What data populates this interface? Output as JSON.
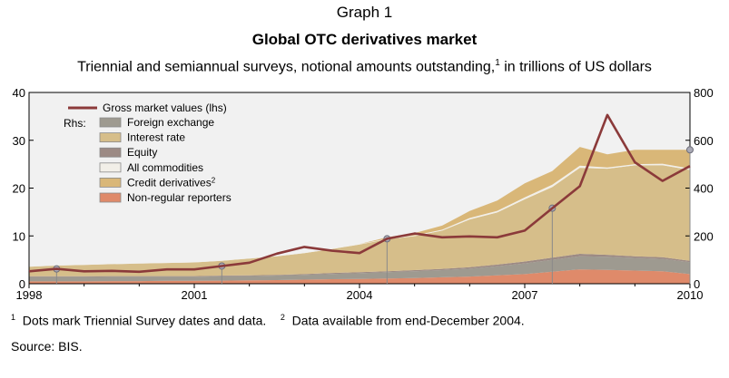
{
  "header": {
    "graph_label": "Graph 1",
    "title": "Global OTC derivatives market",
    "subtitle_pre": "Triennial and semiannual surveys, notional amounts outstanding,",
    "subtitle_sup": "1",
    "subtitle_post": " in trillions of US dollars"
  },
  "footnotes": {
    "n1_mark": "1",
    "n1_text": "Dots mark Triennial Survey dates and data.",
    "n2_mark": "2",
    "n2_text": "Data available from end-December 2004.",
    "source": "Source: BIS."
  },
  "colors": {
    "gross": "#8b3a3a",
    "fx": "#9e9a90",
    "ir": "#d6be8a",
    "equity": "#9c8a84",
    "commodities": "#f2efe8",
    "cds": "#d9b778",
    "nonreg": "#df8a6a",
    "plot_bg": "#f1f1f1",
    "triennial_line": "#8a8a8a"
  },
  "chart_data": {
    "type": "area",
    "x": [
      1998.0,
      1998.5,
      1999.0,
      1999.5,
      2000.0,
      2000.5,
      2001.0,
      2001.5,
      2002.0,
      2002.5,
      2003.0,
      2003.5,
      2004.0,
      2004.5,
      2005.0,
      2005.5,
      2006.0,
      2006.5,
      2007.0,
      2007.5,
      2008.0,
      2008.5,
      2009.0,
      2009.5,
      2010.0
    ],
    "xlim": [
      1998.0,
      2010.0
    ],
    "x_ticks": [
      1998,
      2001,
      2004,
      2007,
      2010
    ],
    "left_axis": {
      "label": "",
      "range": [
        0,
        40
      ],
      "ticks": [
        0,
        10,
        20,
        30,
        40
      ]
    },
    "right_axis": {
      "label": "",
      "range": [
        0,
        800
      ],
      "ticks": [
        0,
        200,
        400,
        600,
        800
      ]
    },
    "legend_title": "Rhs:",
    "legend_position": "top-left",
    "stacked_series_rhs": [
      {
        "name": "Non-regular reporters",
        "color_key": "nonreg",
        "values": [
          10,
          10,
          10,
          11,
          11,
          12,
          12,
          13,
          14,
          15,
          17,
          19,
          20,
          22,
          24,
          27,
          30,
          35,
          40,
          50,
          60,
          58,
          55,
          52,
          40
        ]
      },
      {
        "name": "Foreign exchange",
        "color_key": "fx",
        "values": [
          18,
          18,
          18,
          18,
          18,
          17,
          17,
          18,
          18,
          19,
          20,
          22,
          24,
          26,
          28,
          30,
          33,
          38,
          45,
          50,
          55,
          55,
          53,
          52,
          50
        ]
      },
      {
        "name": "Equity",
        "color_key": "equity",
        "values": [
          3,
          3,
          3,
          3,
          3,
          3,
          3,
          3,
          3,
          3,
          3,
          4,
          4,
          4,
          5,
          5,
          6,
          7,
          8,
          9,
          10,
          8,
          7,
          7,
          6
        ]
      },
      {
        "name": "Interest rate",
        "color_key": "ir",
        "values": [
          40,
          45,
          48,
          50,
          52,
          55,
          57,
          62,
          70,
          78,
          88,
          100,
          116,
          134,
          142,
          160,
          200,
          218,
          260,
          295,
          360,
          360,
          380,
          385,
          380
        ]
      },
      {
        "name": "All commodities",
        "color_key": "commodities",
        "values": [
          1,
          1,
          1,
          1,
          1,
          1,
          1,
          1,
          1,
          1,
          1,
          2,
          2,
          2,
          3,
          4,
          6,
          7,
          8,
          10,
          9,
          5,
          5,
          6,
          6
        ]
      },
      {
        "name": "Credit derivatives",
        "name_sup": "2",
        "color_key": "cds",
        "values": [
          0,
          0,
          0,
          0,
          0,
          0,
          0,
          0,
          0,
          0,
          0,
          0,
          0,
          6,
          10,
          17,
          29,
          43,
          59,
          57,
          78,
          55,
          60,
          58,
          78
        ]
      }
    ],
    "line_series_lhs": {
      "name": "Gross market values (lhs)",
      "color_key": "gross",
      "values": [
        2.6,
        3.1,
        2.6,
        2.7,
        2.5,
        3.0,
        3.0,
        3.7,
        4.4,
        6.3,
        7.7,
        6.9,
        6.4,
        9.4,
        10.5,
        9.7,
        9.9,
        9.7,
        11.1,
        15.8,
        20.4,
        35.3,
        25.4,
        21.5,
        24.6
      ]
    },
    "triennial_dates": [
      1998.5,
      2001.5,
      2004.5,
      2007.5,
      2010.5
    ]
  }
}
